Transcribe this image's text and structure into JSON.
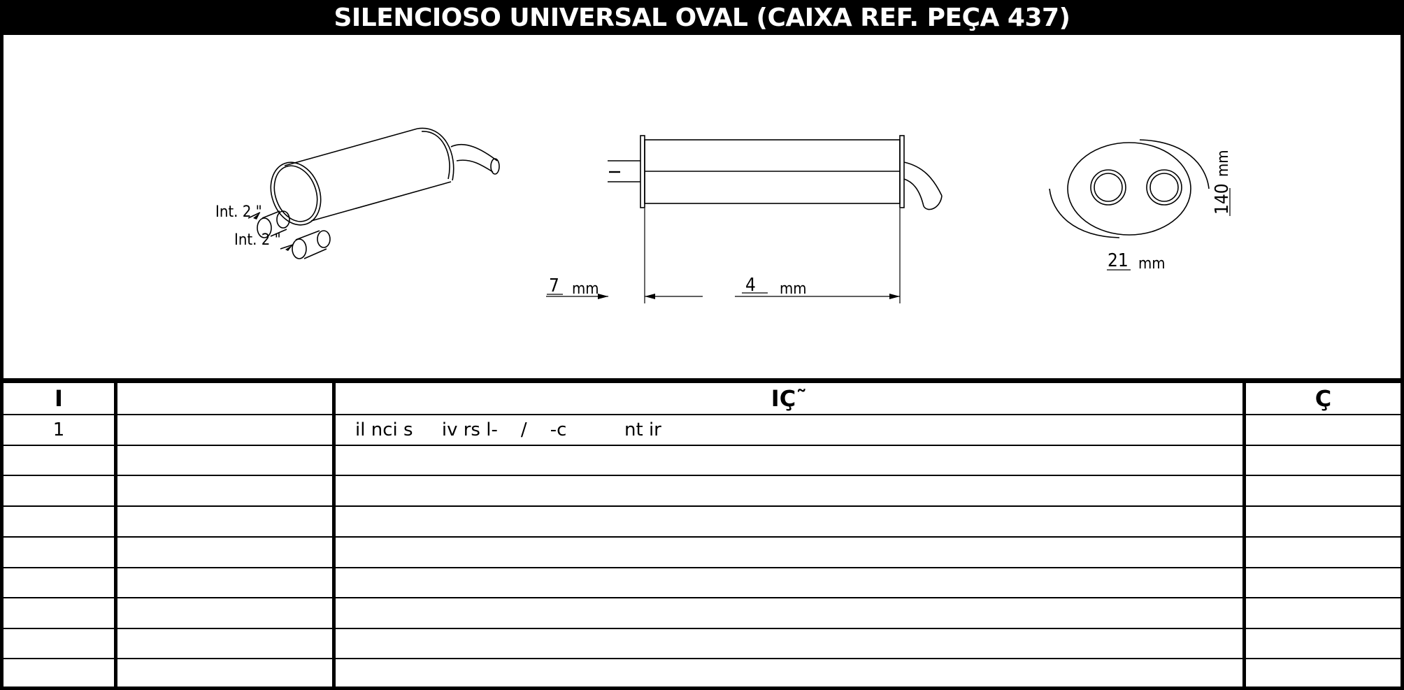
{
  "header": {
    "title": "SILENCIOSO UNIVERSAL OVAL  (CAIXA REF. PEÇA 437)"
  },
  "drawing": {
    "iso_view": {
      "inlet_label_1": "Int. 2 \"",
      "inlet_label_2": "Int. 2 \""
    },
    "side_view": {
      "inlet_length_value": "7",
      "inlet_length_unit": "mm",
      "body_length_value": "4",
      "body_length_unit": "mm"
    },
    "end_view": {
      "height_value": "140",
      "height_unit": "mm",
      "width_value": "21",
      "width_unit": "mm"
    }
  },
  "table": {
    "headers": [
      "I",
      "",
      "IÇ˜",
      "Ç"
    ],
    "rows": [
      [
        "1",
        "",
        "il nci s     iv rs l-    /    -c          nt ir",
        ""
      ],
      [
        "",
        "",
        "",
        ""
      ],
      [
        "",
        "",
        "",
        ""
      ],
      [
        "",
        "",
        "",
        ""
      ],
      [
        "",
        "",
        "",
        ""
      ],
      [
        "",
        "",
        "",
        ""
      ],
      [
        "",
        "",
        "",
        ""
      ],
      [
        "",
        "",
        "",
        ""
      ],
      [
        "",
        "",
        "",
        ""
      ]
    ]
  },
  "colors": {
    "frame": "#000000",
    "paper": "#ffffff",
    "ink": "#000000"
  }
}
